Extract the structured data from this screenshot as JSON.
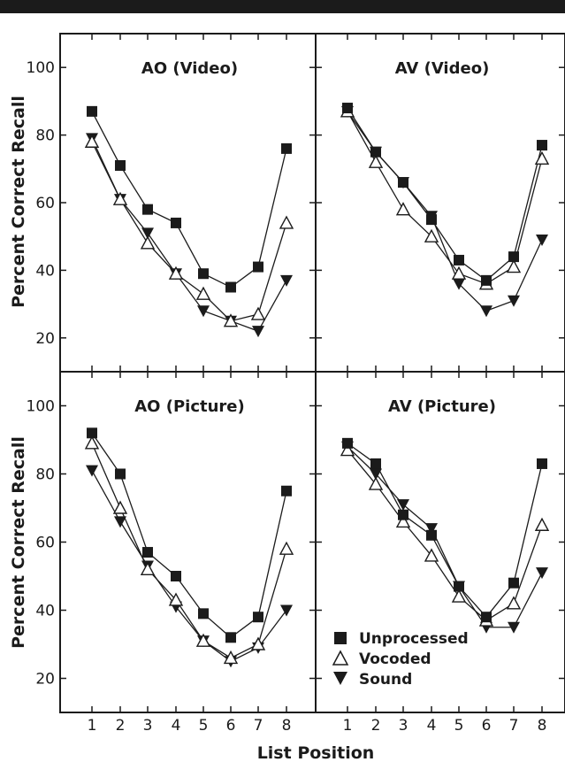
{
  "figure": {
    "ylabel": "Percent Correct Recall",
    "xlabel": "List Position"
  },
  "legend": {
    "items": [
      {
        "label": "Unprocessed",
        "marker": "square-filled"
      },
      {
        "label": "Vocoded",
        "marker": "triangle-open"
      },
      {
        "label": "Sound",
        "marker": "triangle-down-filled"
      }
    ]
  },
  "chart_data": [
    {
      "type": "line",
      "title": "AO (Video)",
      "x": [
        1,
        2,
        3,
        4,
        5,
        6,
        7,
        8
      ],
      "ylim": [
        10,
        110
      ],
      "yticks": [
        20,
        40,
        60,
        80,
        100
      ],
      "series": [
        {
          "name": "Unprocessed",
          "marker": "square-filled",
          "values": [
            87,
            71,
            58,
            54,
            39,
            35,
            41,
            76
          ]
        },
        {
          "name": "Vocoded",
          "marker": "triangle-open",
          "values": [
            78,
            61,
            48,
            39,
            33,
            25,
            27,
            54
          ]
        },
        {
          "name": "Sound",
          "marker": "triangle-down-filled",
          "values": [
            79,
            61,
            51,
            39,
            28,
            25,
            22,
            37
          ]
        }
      ]
    },
    {
      "type": "line",
      "title": "AV (Video)",
      "x": [
        1,
        2,
        3,
        4,
        5,
        6,
        7,
        8
      ],
      "ylim": [
        10,
        110
      ],
      "yticks": [
        20,
        40,
        60,
        80,
        100
      ],
      "series": [
        {
          "name": "Unprocessed",
          "marker": "square-filled",
          "values": [
            88,
            75,
            66,
            55,
            43,
            37,
            44,
            77
          ]
        },
        {
          "name": "Vocoded",
          "marker": "triangle-open",
          "values": [
            87,
            72,
            58,
            50,
            39,
            36,
            41,
            73
          ]
        },
        {
          "name": "Sound",
          "marker": "triangle-down-filled",
          "values": [
            87,
            75,
            66,
            56,
            36,
            28,
            31,
            49
          ]
        }
      ]
    },
    {
      "type": "line",
      "title": "AO (Picture)",
      "x": [
        1,
        2,
        3,
        4,
        5,
        6,
        7,
        8
      ],
      "ylim": [
        10,
        110
      ],
      "yticks": [
        20,
        40,
        60,
        80,
        100
      ],
      "series": [
        {
          "name": "Unprocessed",
          "marker": "square-filled",
          "values": [
            92,
            80,
            57,
            50,
            39,
            32,
            38,
            75
          ]
        },
        {
          "name": "Vocoded",
          "marker": "triangle-open",
          "values": [
            89,
            70,
            52,
            43,
            31,
            26,
            30,
            58
          ]
        },
        {
          "name": "Sound",
          "marker": "triangle-down-filled",
          "values": [
            81,
            66,
            53,
            41,
            31,
            25,
            29,
            40
          ]
        }
      ]
    },
    {
      "type": "line",
      "title": "AV (Picture)",
      "x": [
        1,
        2,
        3,
        4,
        5,
        6,
        7,
        8
      ],
      "ylim": [
        10,
        110
      ],
      "yticks": [
        20,
        40,
        60,
        80,
        100
      ],
      "series": [
        {
          "name": "Unprocessed",
          "marker": "square-filled",
          "values": [
            89,
            83,
            68,
            62,
            47,
            38,
            48,
            83
          ]
        },
        {
          "name": "Vocoded",
          "marker": "triangle-open",
          "values": [
            87,
            77,
            66,
            56,
            44,
            37,
            42,
            65
          ]
        },
        {
          "name": "Sound",
          "marker": "triangle-down-filled",
          "values": [
            88,
            80,
            71,
            64,
            47,
            35,
            35,
            51
          ]
        }
      ]
    }
  ]
}
